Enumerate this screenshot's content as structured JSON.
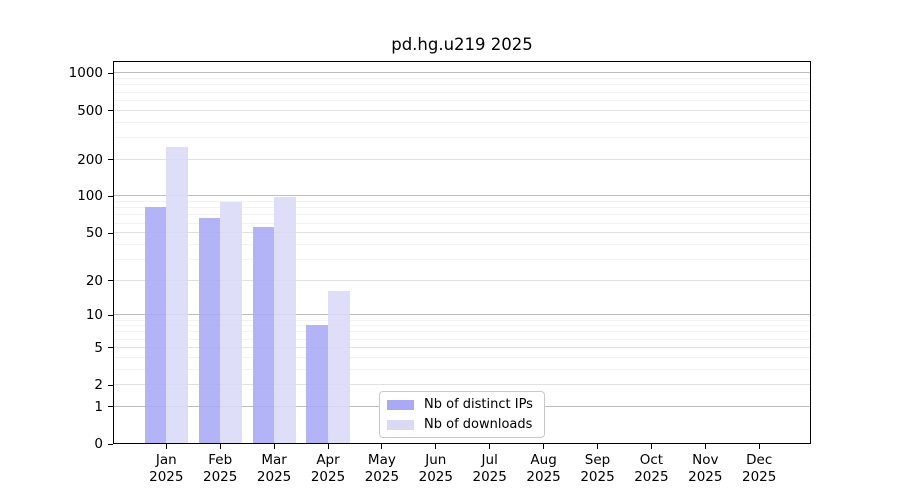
{
  "chart_data": {
    "type": "bar",
    "title": "pd.hg.u219 2025",
    "categories": [
      "Jan",
      "Feb",
      "Mar",
      "Apr",
      "May",
      "Jun",
      "Jul",
      "Aug",
      "Sep",
      "Oct",
      "Nov",
      "Dec"
    ],
    "year": "2025",
    "series": [
      {
        "name": "Nb of distinct IPs",
        "color": "#a9a9f7",
        "values": [
          80,
          65,
          55,
          8,
          0,
          0,
          0,
          0,
          0,
          0,
          0,
          0
        ]
      },
      {
        "name": "Nb of downloads",
        "color": "#dadaf7",
        "values": [
          250,
          89,
          97,
          16,
          0,
          0,
          0,
          0,
          0,
          0,
          0,
          0
        ]
      }
    ],
    "yticks": [
      0,
      1,
      2,
      5,
      10,
      20,
      50,
      100,
      200,
      500,
      1000
    ],
    "minor_yticks": [
      3,
      4,
      6,
      7,
      8,
      9,
      30,
      40,
      60,
      70,
      80,
      90,
      300,
      400,
      600,
      700,
      800,
      900
    ],
    "scale": "log10(x+1)",
    "ylim": [
      0,
      1260
    ],
    "xlabel": "",
    "ylabel": "",
    "grid": true,
    "legend_position": "bottom-center"
  }
}
